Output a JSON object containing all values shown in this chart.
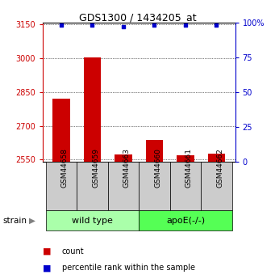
{
  "title": "GDS1300 / 1434205_at",
  "samples": [
    "GSM44658",
    "GSM44659",
    "GSM44663",
    "GSM44660",
    "GSM44661",
    "GSM44662"
  ],
  "counts": [
    2820,
    3005,
    2572,
    2638,
    2570,
    2575
  ],
  "percentile_ranks": [
    98,
    98,
    97,
    98,
    98,
    98
  ],
  "ylim_left": [
    2540,
    3160
  ],
  "ylim_right": [
    0,
    100
  ],
  "yticks_left": [
    2550,
    2700,
    2850,
    3000,
    3150
  ],
  "yticks_right": [
    0,
    25,
    50,
    75,
    100
  ],
  "bar_color": "#cc0000",
  "dot_color": "#0000cc",
  "group_configs": [
    {
      "label": "wild type",
      "start": 0,
      "end": 3,
      "color": "#aaffaa"
    },
    {
      "label": "apoE(-/-)",
      "start": 3,
      "end": 6,
      "color": "#55ff55"
    }
  ],
  "sample_box_color": "#cccccc",
  "left_axis_color": "#cc0000",
  "right_axis_color": "#0000cc",
  "legend_count_color": "#cc0000",
  "legend_pct_color": "#0000cc",
  "background_color": "#ffffff",
  "bar_width": 0.55
}
